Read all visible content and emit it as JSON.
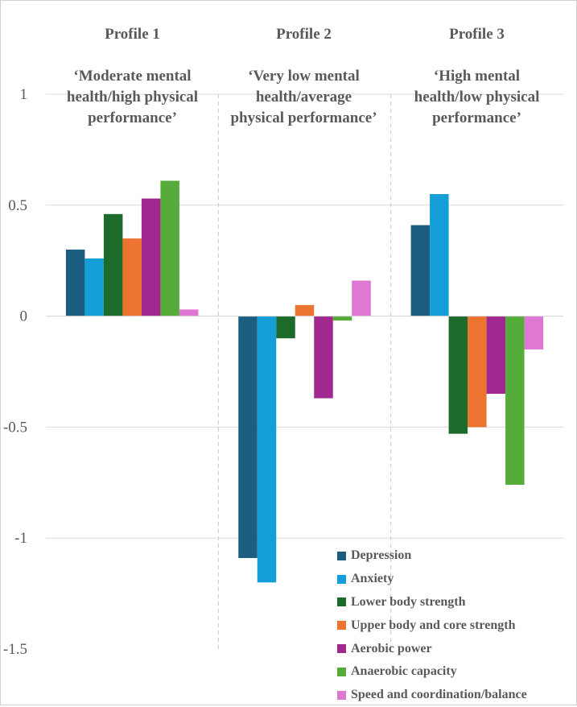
{
  "chart_data": {
    "type": "bar",
    "title": "",
    "xlabel": "",
    "ylabel": "",
    "ylim": [
      -1.5,
      1
    ],
    "yticks": [
      {
        "value": 1,
        "label": "1"
      },
      {
        "value": 0.5,
        "label": "0.5"
      },
      {
        "value": 0,
        "label": "0"
      },
      {
        "value": -0.5,
        "label": "-0.5"
      },
      {
        "value": -1,
        "label": "-1"
      },
      {
        "value": -1.5,
        "label": "-1.5"
      }
    ],
    "grid": true,
    "legend_position": "bottom-right",
    "categories": [
      "Profile 1\n‘Moderate mental health/high physical performance’",
      "Profile 2\n‘Very low mental health/average physical performance’",
      "Profile 3\n‘High mental health/low physical performance’"
    ],
    "profile_headers": [
      {
        "title": "Profile 1",
        "subtitle": "‘Moderate mental\nhealth/high physical\nperformance’"
      },
      {
        "title": "Profile 2",
        "subtitle": "‘Very low mental\nhealth/average\nphysical performance’"
      },
      {
        "title": "Profile 3",
        "subtitle": "‘High mental\nhealth/low physical\nperformance’"
      }
    ],
    "series": [
      {
        "name": "Depression",
        "color": "#1b5e82",
        "values": [
          0.3,
          -1.09,
          0.41
        ]
      },
      {
        "name": "Anxiety",
        "color": "#139ed8",
        "values": [
          0.26,
          -1.2,
          0.55
        ]
      },
      {
        "name": "Lower body strength",
        "color": "#1c6b2a",
        "values": [
          0.46,
          -0.1,
          -0.53
        ]
      },
      {
        "name": "Upper body and core strength",
        "color": "#ed7330",
        "values": [
          0.35,
          0.05,
          -0.5
        ]
      },
      {
        "name": "Aerobic power",
        "color": "#a0288f",
        "values": [
          0.53,
          -0.37,
          -0.35
        ]
      },
      {
        "name": "Anaerobic capacity",
        "color": "#56ac3a",
        "values": [
          0.61,
          -0.02,
          -0.76
        ]
      },
      {
        "name": "Speed and coordination/balance",
        "color": "#de78d2",
        "values": [
          0.03,
          0.16,
          -0.15
        ]
      }
    ]
  }
}
